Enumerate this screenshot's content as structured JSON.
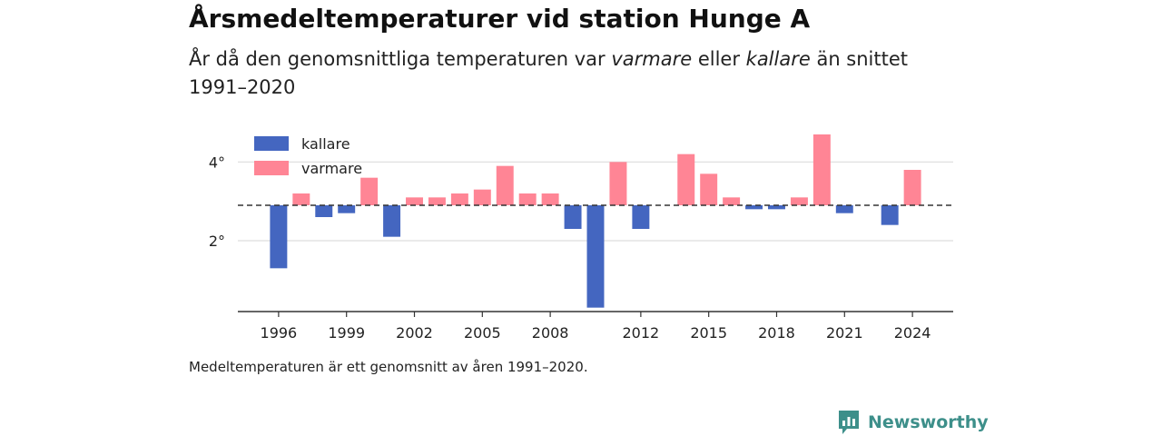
{
  "header": {
    "title": "Årsmedeltemperaturer vid station Hunge A",
    "subtitle_start": "År då den genomsnittliga temperaturen var ",
    "subtitle_warm": "varmare",
    "subtitle_mid": " eller ",
    "subtitle_cold": "kallare",
    "subtitle_end": " än snittet 1991–2020"
  },
  "footer": {
    "note": "Medeltemperaturen är ett genomsnitt av åren 1991–2020.",
    "brand": "Newsworthy"
  },
  "chart_data": {
    "type": "bar",
    "baseline": 2.9,
    "ylim": [
      0.2,
      5.0
    ],
    "yticks": [
      {
        "value": 2,
        "label": "2°"
      },
      {
        "value": 4,
        "label": "4°"
      }
    ],
    "xticks": [
      1996,
      1999,
      2002,
      2005,
      2008,
      2012,
      2015,
      2018,
      2021,
      2024
    ],
    "xlim": [
      1994.2,
      2025.8
    ],
    "legend": {
      "position": "top-left",
      "entries": [
        "kallare",
        "varmare"
      ]
    },
    "colors": {
      "kallare": "#4466c0",
      "varmare": "#ff8595",
      "baseline": "#333333",
      "grid": "#dddddd"
    },
    "years": [
      1996,
      1997,
      1998,
      1999,
      2000,
      2001,
      2002,
      2003,
      2004,
      2005,
      2006,
      2007,
      2008,
      2009,
      2010,
      2011,
      2012,
      2014,
      2015,
      2016,
      2017,
      2018,
      2019,
      2020,
      2021,
      2023,
      2024
    ],
    "values": [
      1.3,
      3.2,
      2.6,
      2.7,
      3.6,
      2.1,
      3.1,
      3.1,
      3.2,
      3.3,
      3.9,
      3.2,
      3.2,
      2.3,
      0.3,
      4.0,
      2.3,
      4.2,
      3.7,
      3.1,
      2.8,
      2.8,
      3.1,
      4.7,
      2.7,
      2.4,
      3.8
    ]
  }
}
